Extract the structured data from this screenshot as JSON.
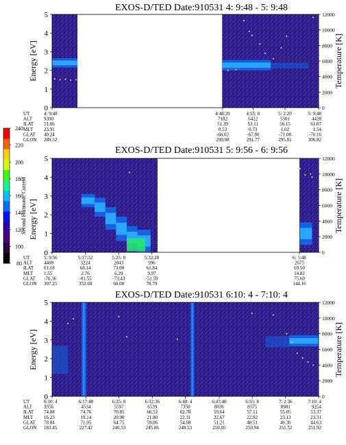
{
  "colorbar": {
    "label": "Second Harmonic Current",
    "ticks": [
      "80",
      "100",
      "120",
      "140",
      "160",
      "180",
      "200",
      "220",
      "240"
    ],
    "colors": [
      "#000000",
      "#2b0045",
      "#4a0078",
      "#2a00b0",
      "#0010ff",
      "#0070ff",
      "#00c0ff",
      "#00ff90",
      "#40ff00",
      "#d0ff00",
      "#ffd000",
      "#ff6000",
      "#ff0000"
    ]
  },
  "colors": {
    "background_field": "#301d8c",
    "noise_light": "#4b55e6",
    "band_core": "#2aa6ff",
    "band_edge": "#1760e0",
    "highlight": "#27e86a",
    "dot": "#f2c24a",
    "no_data": "#ffffff"
  },
  "table_row_labels": [
    "UT",
    "ALT",
    "ILAT",
    "MLT",
    "GLAT",
    "GLON"
  ],
  "panels": [
    {
      "title": "EXOS-D/TED   Date:910531  4: 9:48 - 5: 9:48",
      "ylabel": "Energy [eV]",
      "ylabel2": "Temperature [K]",
      "yticks": [
        "0",
        "1",
        "2",
        "3",
        "4",
        "5"
      ],
      "y2ticks": [
        "0",
        "2000",
        "4000",
        "6000",
        "8000",
        "10000",
        "12000"
      ],
      "columns": [
        {
          "t": [
            "4: 9:48",
            "9390",
            "51.86",
            "23.91",
            "40.24",
            "289.52"
          ],
          "pos": 0.0
        },
        {
          "t": [
            "4:48:20",
            "7182",
            "51.39",
            "0.53",
            "-66.02",
            "290.08"
          ],
          "pos": 0.64
        },
        {
          "t": [
            "4:55: 8",
            "6422",
            "53.11",
            "0.73",
            "-67.86",
            "291.77"
          ],
          "pos": 0.754
        },
        {
          "t": [
            "5: 2:20",
            "5501",
            "56.15",
            "1.02",
            "-71.08",
            "295.81"
          ],
          "pos": 0.874
        },
        {
          "t": [
            "5: 9:48",
            "4428",
            "61.07",
            "1.54",
            "-76.16",
            "306.92"
          ],
          "pos": 1.0
        }
      ],
      "data_intervals": [
        [
          0,
          0.095
        ],
        [
          0.638,
          1.0
        ]
      ],
      "bands": [
        {
          "x0": 0,
          "x1": 0.095,
          "e0": 2.15,
          "e1": 2.65,
          "kind": "band"
        },
        {
          "x0": 0.638,
          "x1": 0.82,
          "e0": 2.0,
          "e1": 2.55,
          "kind": "band"
        },
        {
          "x0": 0.82,
          "x1": 0.96,
          "e0": 2.1,
          "e1": 2.4,
          "kind": "faint"
        }
      ],
      "temperature": [
        {
          "x": 0.01,
          "T": 3700
        },
        {
          "x": 0.03,
          "T": 3600
        },
        {
          "x": 0.05,
          "T": 3650
        },
        {
          "x": 0.07,
          "T": 3550
        },
        {
          "x": 0.09,
          "T": 3600
        },
        {
          "x": 0.66,
          "T": 4800
        },
        {
          "x": 0.69,
          "T": 4900
        },
        {
          "x": 0.72,
          "T": 11200
        },
        {
          "x": 0.74,
          "T": 9800
        },
        {
          "x": 0.75,
          "T": 9300
        },
        {
          "x": 0.78,
          "T": 8200
        },
        {
          "x": 0.8,
          "T": 7000
        },
        {
          "x": 0.83,
          "T": 6300
        },
        {
          "x": 0.86,
          "T": 7700
        },
        {
          "x": 0.88,
          "T": 9200
        },
        {
          "x": 0.98,
          "T": 11600
        }
      ]
    },
    {
      "title": "EXOS-D/TED   Date:910531  5: 9:56 - 6: 9:56",
      "ylabel": "Energy [eV]",
      "ylabel2": "Temperature [K]",
      "yticks": [
        "0",
        "1",
        "2",
        "3",
        "4",
        "5"
      ],
      "y2ticks": [
        "0",
        "2000",
        "4000",
        "6000",
        "8000",
        "10000",
        "12000"
      ],
      "columns": [
        {
          "t": [
            "5: 9:56",
            "4408",
            "61.18",
            "1.55",
            "-76.36",
            "307.25"
          ],
          "pos": 0.0
        },
        {
          "t": [
            "5:17:32",
            "3224",
            "68.14",
            "2.76",
            "-81.55",
            "352.68"
          ],
          "pos": 0.125
        },
        {
          "t": [
            "5:25: 0",
            "2043",
            "73.00",
            "6.29",
            "-73.43",
            "60.08"
          ],
          "pos": 0.25
        },
        {
          "t": [
            "5:32:28",
            "996",
            "61.84",
            "9.97",
            "-51.59",
            "78.79"
          ],
          "pos": 0.374
        },
        {
          "t": [
            "6: 5:48",
            "2675",
            "69.50",
            "14.82",
            "75.60",
            "144.16"
          ],
          "pos": 0.928
        }
      ],
      "data_intervals": [
        [
          0,
          0.396
        ],
        [
          0.928,
          1.0
        ]
      ],
      "bands": [
        {
          "x0": 0.11,
          "x1": 0.16,
          "e0": 2.4,
          "e1": 3.1,
          "kind": "band"
        },
        {
          "x0": 0.16,
          "x1": 0.2,
          "e0": 1.9,
          "e1": 2.9,
          "kind": "band"
        },
        {
          "x0": 0.2,
          "x1": 0.24,
          "e0": 1.2,
          "e1": 2.4,
          "kind": "band"
        },
        {
          "x0": 0.24,
          "x1": 0.28,
          "e0": 0.6,
          "e1": 1.9,
          "kind": "band"
        },
        {
          "x0": 0.28,
          "x1": 0.32,
          "e0": 0.2,
          "e1": 1.4,
          "kind": "band"
        },
        {
          "x0": 0.32,
          "x1": 0.37,
          "e0": 0.0,
          "e1": 1.2,
          "kind": "band"
        },
        {
          "x0": 0.28,
          "x1": 0.35,
          "e0": 0.05,
          "e1": 0.75,
          "kind": "high"
        },
        {
          "x0": 0.93,
          "x1": 0.975,
          "e0": 0.4,
          "e1": 1.6,
          "kind": "band"
        }
      ],
      "temperature": [
        {
          "x": 0.29,
          "T": 10200
        },
        {
          "x": 0.93,
          "T": 10700
        },
        {
          "x": 0.95,
          "T": 9900
        },
        {
          "x": 0.97,
          "T": 10000
        },
        {
          "x": 0.975,
          "T": 9600
        }
      ]
    },
    {
      "title": "EXOS-D/TED   Date:910531  6:10: 4 - 7:10: 4",
      "ylabel": "Energy [eV]",
      "ylabel2": "Temperature [K]",
      "yticks": [
        "0",
        "1",
        "2",
        "3",
        "4",
        "5"
      ],
      "y2ticks": [
        "0",
        "2000",
        "4000",
        "6000",
        "8000",
        "10000",
        "12000"
      ],
      "columns": [
        {
          "t": [
            "6:10: 4",
            "3356",
            "74.08",
            "16.23",
            "78.04",
            "183.45"
          ],
          "pos": 0.0
        },
        {
          "t": [
            "6:17:40",
            "4534",
            "74.76",
            "19.14",
            "71.95",
            "227.42"
          ],
          "pos": 0.127
        },
        {
          "t": [
            "6:25: 8",
            "5597",
            "70.85",
            "20.90",
            "64.75",
            "240.53"
          ],
          "pos": 0.251
        },
        {
          "t": [
            "6:32:36",
            "6539",
            "66.52",
            "21.80",
            "59.06",
            "245.86"
          ],
          "pos": 0.376
        },
        {
          "t": [
            "6:40: 4",
            "7350",
            "62.78",
            "22.31",
            "54.68",
            "248.53"
          ],
          "pos": 0.5
        },
        {
          "t": [
            "6:47:40",
            "8036",
            "59.64",
            "22.67",
            "51.21",
            "250.05"
          ],
          "pos": 0.627
        },
        {
          "t": [
            "6:55: 8",
            "8575",
            "57.11",
            "22.92",
            "48.51",
            "250.94"
          ],
          "pos": 0.751
        },
        {
          "t": [
            "7: 2:36",
            "8981",
            "55.05",
            "23.13",
            "46.36",
            "251.52"
          ],
          "pos": 0.876
        },
        {
          "t": [
            "7:10: 4",
            "9254",
            "53.37",
            "23.31",
            "44.63",
            "251.92"
          ],
          "pos": 1.0
        }
      ],
      "data_intervals": [
        [
          0,
          1.0
        ]
      ],
      "bands": [
        {
          "x0": 0.0,
          "x1": 0.06,
          "e0": 1.2,
          "e1": 2.7,
          "kind": "faint"
        },
        {
          "x0": 0.11,
          "x1": 0.128,
          "e0": 0.0,
          "e1": 5.0,
          "kind": "vline"
        },
        {
          "x0": 0.52,
          "x1": 0.533,
          "e0": 0.0,
          "e1": 5.0,
          "kind": "vline"
        },
        {
          "x0": 0.8,
          "x1": 0.89,
          "e0": 2.6,
          "e1": 3.2,
          "kind": "faint"
        },
        {
          "x0": 0.89,
          "x1": 1.0,
          "e0": 2.65,
          "e1": 3.25,
          "kind": "band"
        }
      ],
      "temperature": [
        {
          "x": 0.06,
          "T": 9300
        },
        {
          "x": 0.08,
          "T": 9900
        },
        {
          "x": 0.25,
          "T": 10200
        },
        {
          "x": 0.28,
          "T": 7600
        },
        {
          "x": 0.47,
          "T": 7300
        },
        {
          "x": 0.75,
          "T": 10600
        },
        {
          "x": 0.83,
          "T": 10400
        },
        {
          "x": 0.88,
          "T": 8000
        },
        {
          "x": 0.9,
          "T": 6900
        },
        {
          "x": 0.92,
          "T": 5500
        },
        {
          "x": 0.94,
          "T": 4900
        },
        {
          "x": 0.96,
          "T": 4400
        },
        {
          "x": 0.98,
          "T": 4000
        },
        {
          "x": 1.0,
          "T": 3700
        }
      ]
    }
  ],
  "chart_data": [
    {
      "type": "heatmap",
      "title": "EXOS-D/TED   Date:910531  4: 9:48 - 5: 9:48",
      "ylabel": "Energy [eV]",
      "ylabel2": "Temperature [K]",
      "ylim": [
        0,
        5
      ],
      "y2lim": [
        0,
        12000
      ],
      "x_ticks": [
        "4: 9:48",
        "4:48:20",
        "4:55: 8",
        "5: 2:20",
        "5: 9:48"
      ],
      "intensity_bands": [
        {
          "time": "4: 9:48 - ~4:15",
          "energy": [
            2.2,
            2.6
          ]
        },
        {
          "time": "~4:48 - ~5:0",
          "energy": [
            2.0,
            2.5
          ]
        }
      ],
      "temperature_series": [
        {
          "time": "4: 9:48 - ~4:15",
          "T_approx": 3650
        },
        {
          "time": "~4:54",
          "T_approx": 11200
        },
        {
          "time": "~4:58",
          "T_approx": 8000
        }
      ],
      "grid": false,
      "legend": "colorbar left"
    },
    {
      "type": "heatmap",
      "title": "EXOS-D/TED   Date:910531  5: 9:56 - 6: 9:56",
      "ylabel": "Energy [eV]",
      "ylabel2": "Temperature [K]",
      "ylim": [
        0,
        5
      ],
      "y2lim": [
        0,
        12000
      ],
      "x_ticks": [
        "5: 9:56",
        "5:17:32",
        "5:25: 0",
        "5:32:28",
        "6: 5:48"
      ],
      "intensity_bands": [
        {
          "time": "~5:17 - 5:32",
          "energy": [
            0,
            3.1
          ],
          "peak_energy": [
            0.05,
            0.75
          ]
        },
        {
          "time": "6: 5:48 - end",
          "energy": [
            0.4,
            1.6
          ]
        }
      ],
      "temperature_series": [
        {
          "time": "~5:27",
          "T_approx": 10200
        },
        {
          "time": "~6: 7",
          "T_approx": 10000
        }
      ],
      "grid": false,
      "legend": "colorbar left"
    },
    {
      "type": "heatmap",
      "title": "EXOS-D/TED   Date:910531  6:10: 4 - 7:10: 4",
      "ylabel": "Energy [eV]",
      "ylabel2": "Temperature [K]",
      "ylim": [
        0,
        5
      ],
      "y2lim": [
        0,
        12000
      ],
      "x_ticks": [
        "6:10: 4",
        "6:17:40",
        "6:25: 8",
        "6:32:36",
        "6:40: 4",
        "6:47:40",
        "6:55: 8",
        "7: 2:36",
        "7:10: 4"
      ],
      "intensity_bands": [
        {
          "time": "~6:17",
          "energy": [
            0,
            5
          ]
        },
        {
          "time": "~6:41",
          "energy": [
            0,
            5
          ]
        },
        {
          "time": "~7: 3 - 7:10: 4",
          "energy": [
            2.65,
            3.25
          ]
        }
      ],
      "temperature_series": [
        {
          "time": "~7: 4",
          "T_approx": 6900
        },
        {
          "time": "~7: 7",
          "T_approx": 4900
        },
        {
          "time": "7:10: 4",
          "T_approx": 3700
        }
      ],
      "grid": false,
      "legend": "colorbar left"
    }
  ]
}
